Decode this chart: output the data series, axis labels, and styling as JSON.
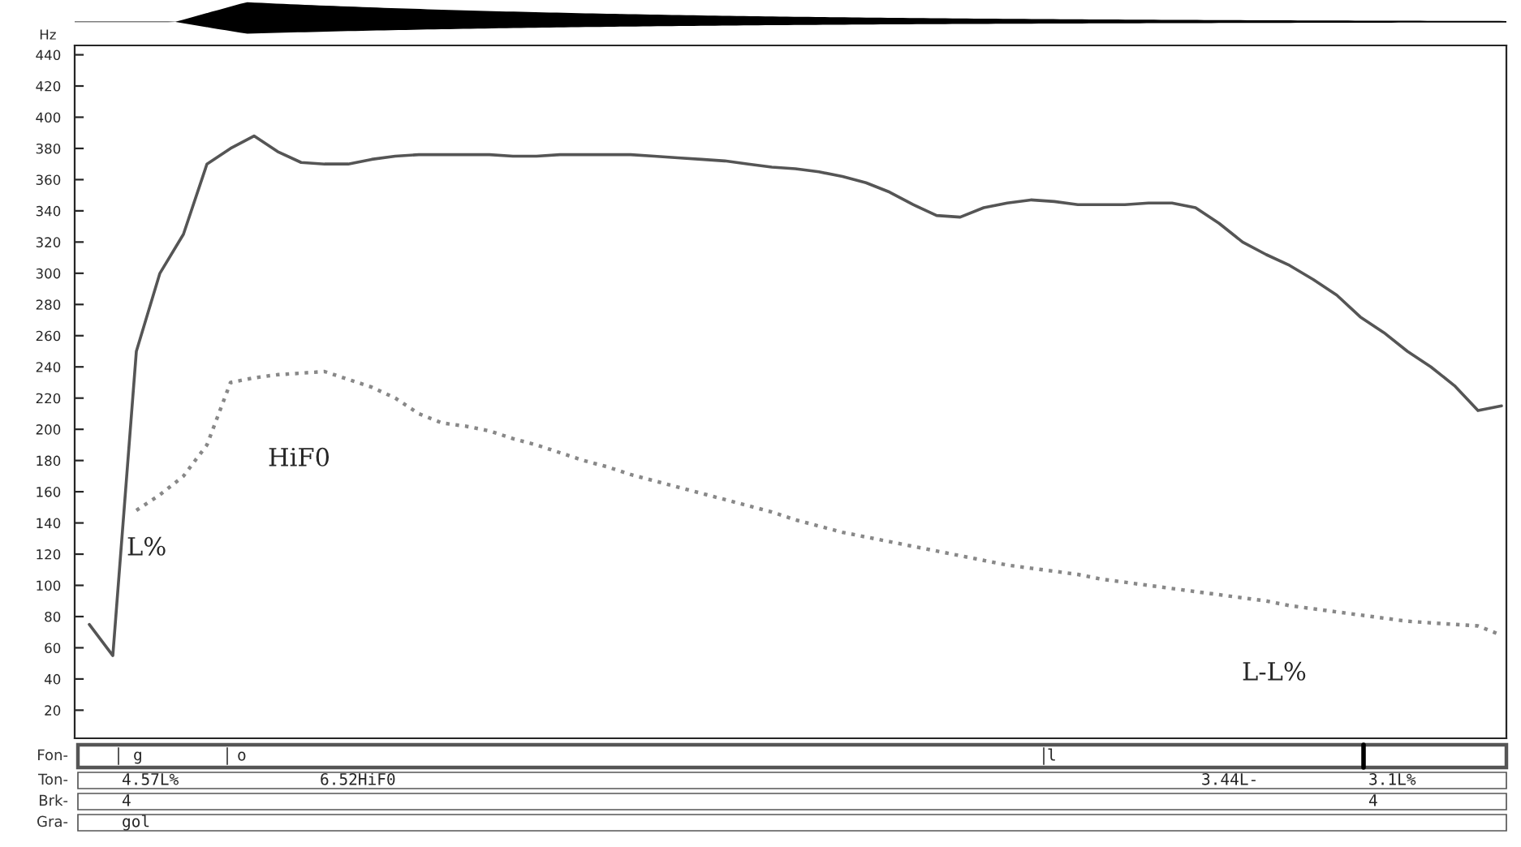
{
  "chart_data": {
    "type": "line",
    "ylabel": "Hz",
    "categories": [
      null,
      null,
      null,
      null,
      null,
      null,
      null,
      null,
      null,
      null,
      null,
      null,
      null,
      null,
      null,
      null,
      null,
      null,
      null,
      null,
      null,
      null,
      null,
      null,
      null,
      null,
      null,
      null,
      null,
      null,
      null,
      null,
      null,
      null,
      null,
      null,
      null,
      null,
      null,
      null,
      null,
      null,
      null,
      null,
      null,
      null,
      null,
      null,
      null,
      null,
      null,
      null,
      null,
      null,
      null,
      null,
      null,
      null,
      null,
      null,
      null
    ],
    "series": [
      {
        "color": "#555555",
        "line_style": "solid",
        "values": [
          75,
          55,
          250,
          300,
          325,
          370,
          380,
          388,
          378,
          371,
          370,
          370,
          373,
          375,
          376,
          376,
          376,
          376,
          375,
          375,
          376,
          376,
          376,
          376,
          375,
          374,
          373,
          372,
          370,
          368,
          367,
          365,
          362,
          358,
          352,
          344,
          337,
          336,
          342,
          345,
          347,
          346,
          344,
          344,
          344,
          345,
          345,
          342,
          332,
          320,
          312,
          305,
          296,
          286,
          272,
          262,
          250,
          240,
          228,
          212,
          215
        ]
      },
      {
        "color": "#888888",
        "line_style": "dotted",
        "values": [
          null,
          null,
          148,
          158,
          170,
          190,
          230,
          233,
          235,
          236,
          237,
          232,
          227,
          220,
          210,
          204,
          202,
          199,
          194,
          190,
          185,
          180,
          176,
          171,
          167,
          163,
          159,
          155,
          151,
          147,
          142,
          138,
          134,
          131,
          128,
          125,
          122,
          119,
          116,
          113,
          111,
          109,
          107,
          104,
          102,
          100,
          98,
          96,
          94,
          92,
          90,
          87,
          85,
          83,
          81,
          79,
          77,
          76,
          75,
          74,
          68
        ]
      }
    ],
    "ylim": [
      2,
      446
    ],
    "yticks": [
      20,
      40,
      60,
      80,
      100,
      120,
      140,
      160,
      180,
      200,
      220,
      240,
      260,
      280,
      300,
      320,
      340,
      360,
      380,
      400,
      420,
      440
    ],
    "grid": false,
    "legend": false,
    "tick_labels": "y",
    "annotations": [
      "HiF0",
      "L%",
      "L-L%",
      "Fon-",
      "g",
      "o",
      "l",
      "Ton-",
      "4.57L%",
      "6.52HiF0",
      "3.44L-",
      "3.1L%",
      "Brk-",
      "4",
      "4",
      "Gra-",
      "gol"
    ]
  }
}
